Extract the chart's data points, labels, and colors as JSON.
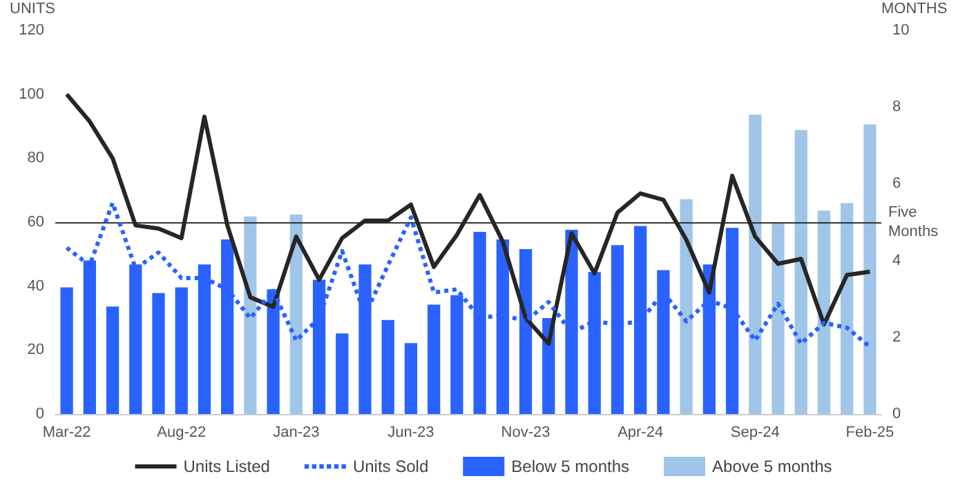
{
  "chart_data": {
    "type": "bar",
    "ylabel": "UNITS",
    "y2label": "MONTHS",
    "categories": [
      "Mar-22",
      null,
      null,
      null,
      null,
      "Aug-22",
      null,
      null,
      null,
      null,
      "Jan-23",
      null,
      null,
      null,
      null,
      "Jun-23",
      null,
      null,
      null,
      null,
      "Nov-23",
      null,
      null,
      null,
      null,
      "Apr-24",
      null,
      null,
      null,
      null,
      "Sep-24",
      null,
      null,
      null,
      null,
      "Feb-25"
    ],
    "series": [
      {
        "name": "Units Listed",
        "type": "line",
        "color": "#262626",
        "line_style": "solid",
        "values": [
          100,
          91.5,
          80,
          59,
          58,
          55,
          93,
          59,
          36.5,
          33.5,
          55.5,
          42,
          55,
          60.5,
          60.5,
          65.5,
          46,
          56,
          68.5,
          54,
          30,
          22,
          56.5,
          44,
          63,
          69,
          67,
          54.5,
          38,
          74.5,
          55.5,
          47,
          48.5,
          28,
          43.5,
          44.5
        ]
      },
      {
        "name": "Units Sold",
        "type": "line",
        "color": "#2962ff",
        "line_style": "dotted",
        "values": [
          52,
          46.5,
          66,
          45.5,
          50.5,
          42.5,
          42.5,
          39,
          30,
          38.5,
          23,
          30,
          51,
          31,
          46.5,
          61.5,
          38,
          39,
          30,
          31,
          29,
          35,
          25.5,
          29,
          28,
          29,
          38,
          29,
          35.5,
          33,
          23,
          34.5,
          22,
          28.5,
          27,
          21
        ]
      },
      {
        "name": "Below 5 months",
        "axis": "y2",
        "color": "#2962ff",
        "values": [
          3.3,
          4.0,
          2.8,
          3.9,
          3.15,
          3.3,
          3.9,
          4.55,
          null,
          3.25,
          null,
          3.5,
          2.1,
          3.9,
          2.45,
          1.85,
          2.85,
          3.1,
          4.75,
          4.55,
          4.3,
          2.5,
          4.8,
          3.7,
          4.4,
          4.9,
          3.75,
          null,
          3.9,
          4.85,
          null,
          null,
          null,
          null,
          null,
          null
        ]
      },
      {
        "name": "Above 5 months",
        "axis": "y2",
        "color": "#9fc5e8",
        "values": [
          null,
          null,
          null,
          null,
          null,
          null,
          null,
          null,
          5.15,
          null,
          5.2,
          null,
          null,
          null,
          null,
          null,
          null,
          null,
          null,
          null,
          null,
          null,
          null,
          null,
          null,
          null,
          null,
          5.6,
          null,
          null,
          7.8,
          5.0,
          7.4,
          5.3,
          5.5,
          7.55
        ]
      }
    ],
    "ylim": [
      0,
      120
    ],
    "yticks": [
      0,
      20,
      40,
      60,
      80,
      100,
      120
    ],
    "y2lim": [
      0,
      10
    ],
    "y2ticks": [
      0,
      2,
      4,
      6,
      8,
      10
    ],
    "ref_lines": [
      {
        "axis": "y2",
        "value": 5,
        "label": "Five Months",
        "color": "#333333",
        "line_style": "solid"
      }
    ],
    "marker": "none",
    "grid": false,
    "legend": "bottom"
  }
}
